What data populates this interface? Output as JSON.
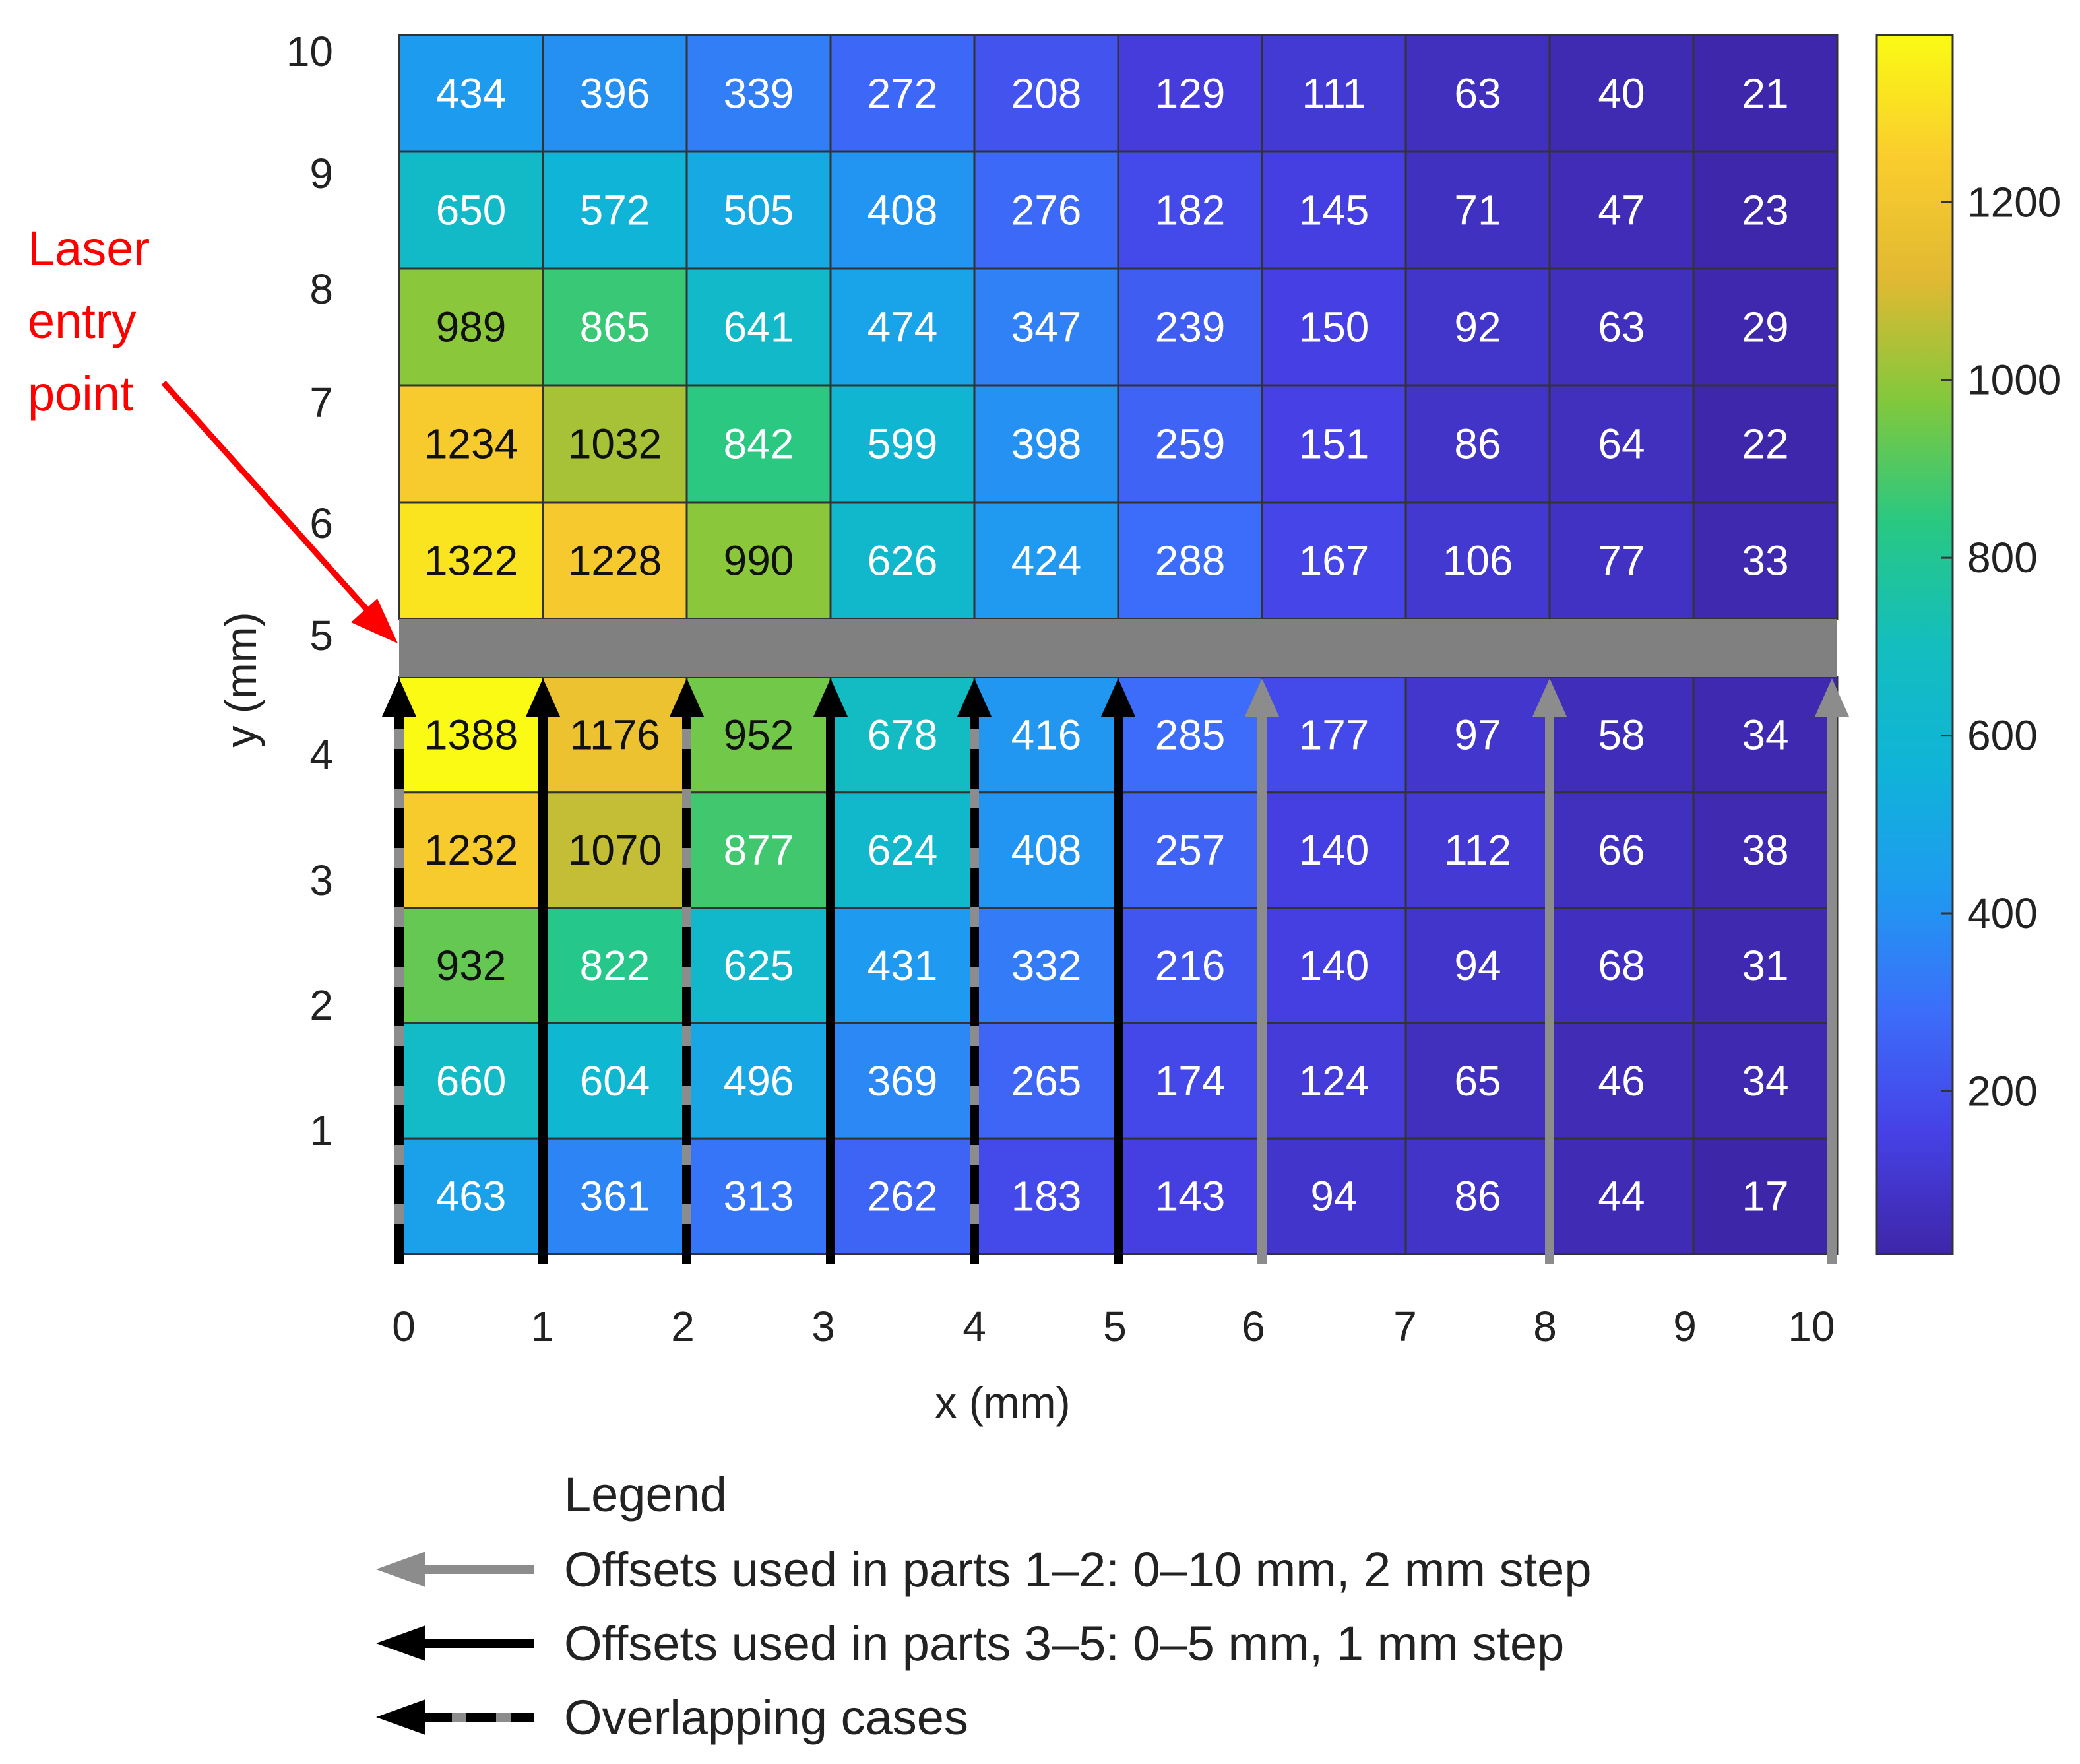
{
  "chart_data": {
    "type": "heatmap",
    "title": "",
    "xlabel": "x (mm)",
    "ylabel": "y (mm)",
    "x_ticks": [
      "0",
      "1",
      "2",
      "3",
      "4",
      "5",
      "6",
      "7",
      "8",
      "9",
      "10"
    ],
    "y_ticks": [
      "1",
      "2",
      "3",
      "4",
      "5",
      "6",
      "7",
      "8",
      "9",
      "10"
    ],
    "xlim": [
      0,
      10
    ],
    "ylim": [
      0,
      10
    ],
    "upper_rows_top_to_bottom": [
      [
        434,
        396,
        339,
        272,
        208,
        129,
        111,
        63,
        40,
        21
      ],
      [
        650,
        572,
        505,
        408,
        276,
        182,
        145,
        71,
        47,
        23
      ],
      [
        989,
        865,
        641,
        474,
        347,
        239,
        150,
        92,
        63,
        29
      ],
      [
        1234,
        1032,
        842,
        599,
        398,
        259,
        151,
        86,
        64,
        22
      ],
      [
        1322,
        1228,
        990,
        626,
        424,
        288,
        167,
        106,
        77,
        33
      ]
    ],
    "lower_rows_top_to_bottom": [
      [
        1388,
        1176,
        952,
        678,
        416,
        285,
        177,
        97,
        58,
        34
      ],
      [
        1232,
        1070,
        877,
        624,
        408,
        257,
        140,
        112,
        66,
        38
      ],
      [
        932,
        822,
        625,
        431,
        332,
        216,
        140,
        94,
        68,
        31
      ],
      [
        660,
        604,
        496,
        369,
        265,
        174,
        124,
        65,
        46,
        34
      ],
      [
        463,
        361,
        313,
        262,
        183,
        143,
        94,
        86,
        44,
        17
      ]
    ],
    "colorbar": {
      "range": [
        17,
        1388
      ],
      "ticks": [
        "200",
        "400",
        "600",
        "800",
        "1000",
        "1200"
      ],
      "tick_values": [
        200,
        400,
        600,
        800,
        1000,
        1200
      ]
    },
    "band_color": "#808080",
    "laser_annotation": {
      "lines": [
        "Laser",
        "entry",
        "point"
      ],
      "color": "#ff0000"
    },
    "offset_arrows": [
      {
        "x": 0,
        "style": "overlap"
      },
      {
        "x": 1,
        "style": "black"
      },
      {
        "x": 2,
        "style": "overlap"
      },
      {
        "x": 3,
        "style": "black"
      },
      {
        "x": 4,
        "style": "overlap"
      },
      {
        "x": 5,
        "style": "black"
      },
      {
        "x": 6,
        "style": "gray"
      },
      {
        "x": 8,
        "style": "gray"
      },
      {
        "x": 10,
        "style": "gray"
      }
    ],
    "legend": {
      "title": "Legend",
      "entries": [
        {
          "style": "gray",
          "label": "Offsets used in parts 1–2: 0–10 mm, 2 mm step"
        },
        {
          "style": "black",
          "label": "Offsets used in parts 3–5: 0–5 mm, 1 mm step"
        },
        {
          "style": "overlap",
          "label": "Overlapping cases"
        }
      ]
    },
    "colors": {
      "gray_arrow": "#8c8c8c",
      "black_arrow": "#000000",
      "grid_line": "#333333"
    }
  }
}
